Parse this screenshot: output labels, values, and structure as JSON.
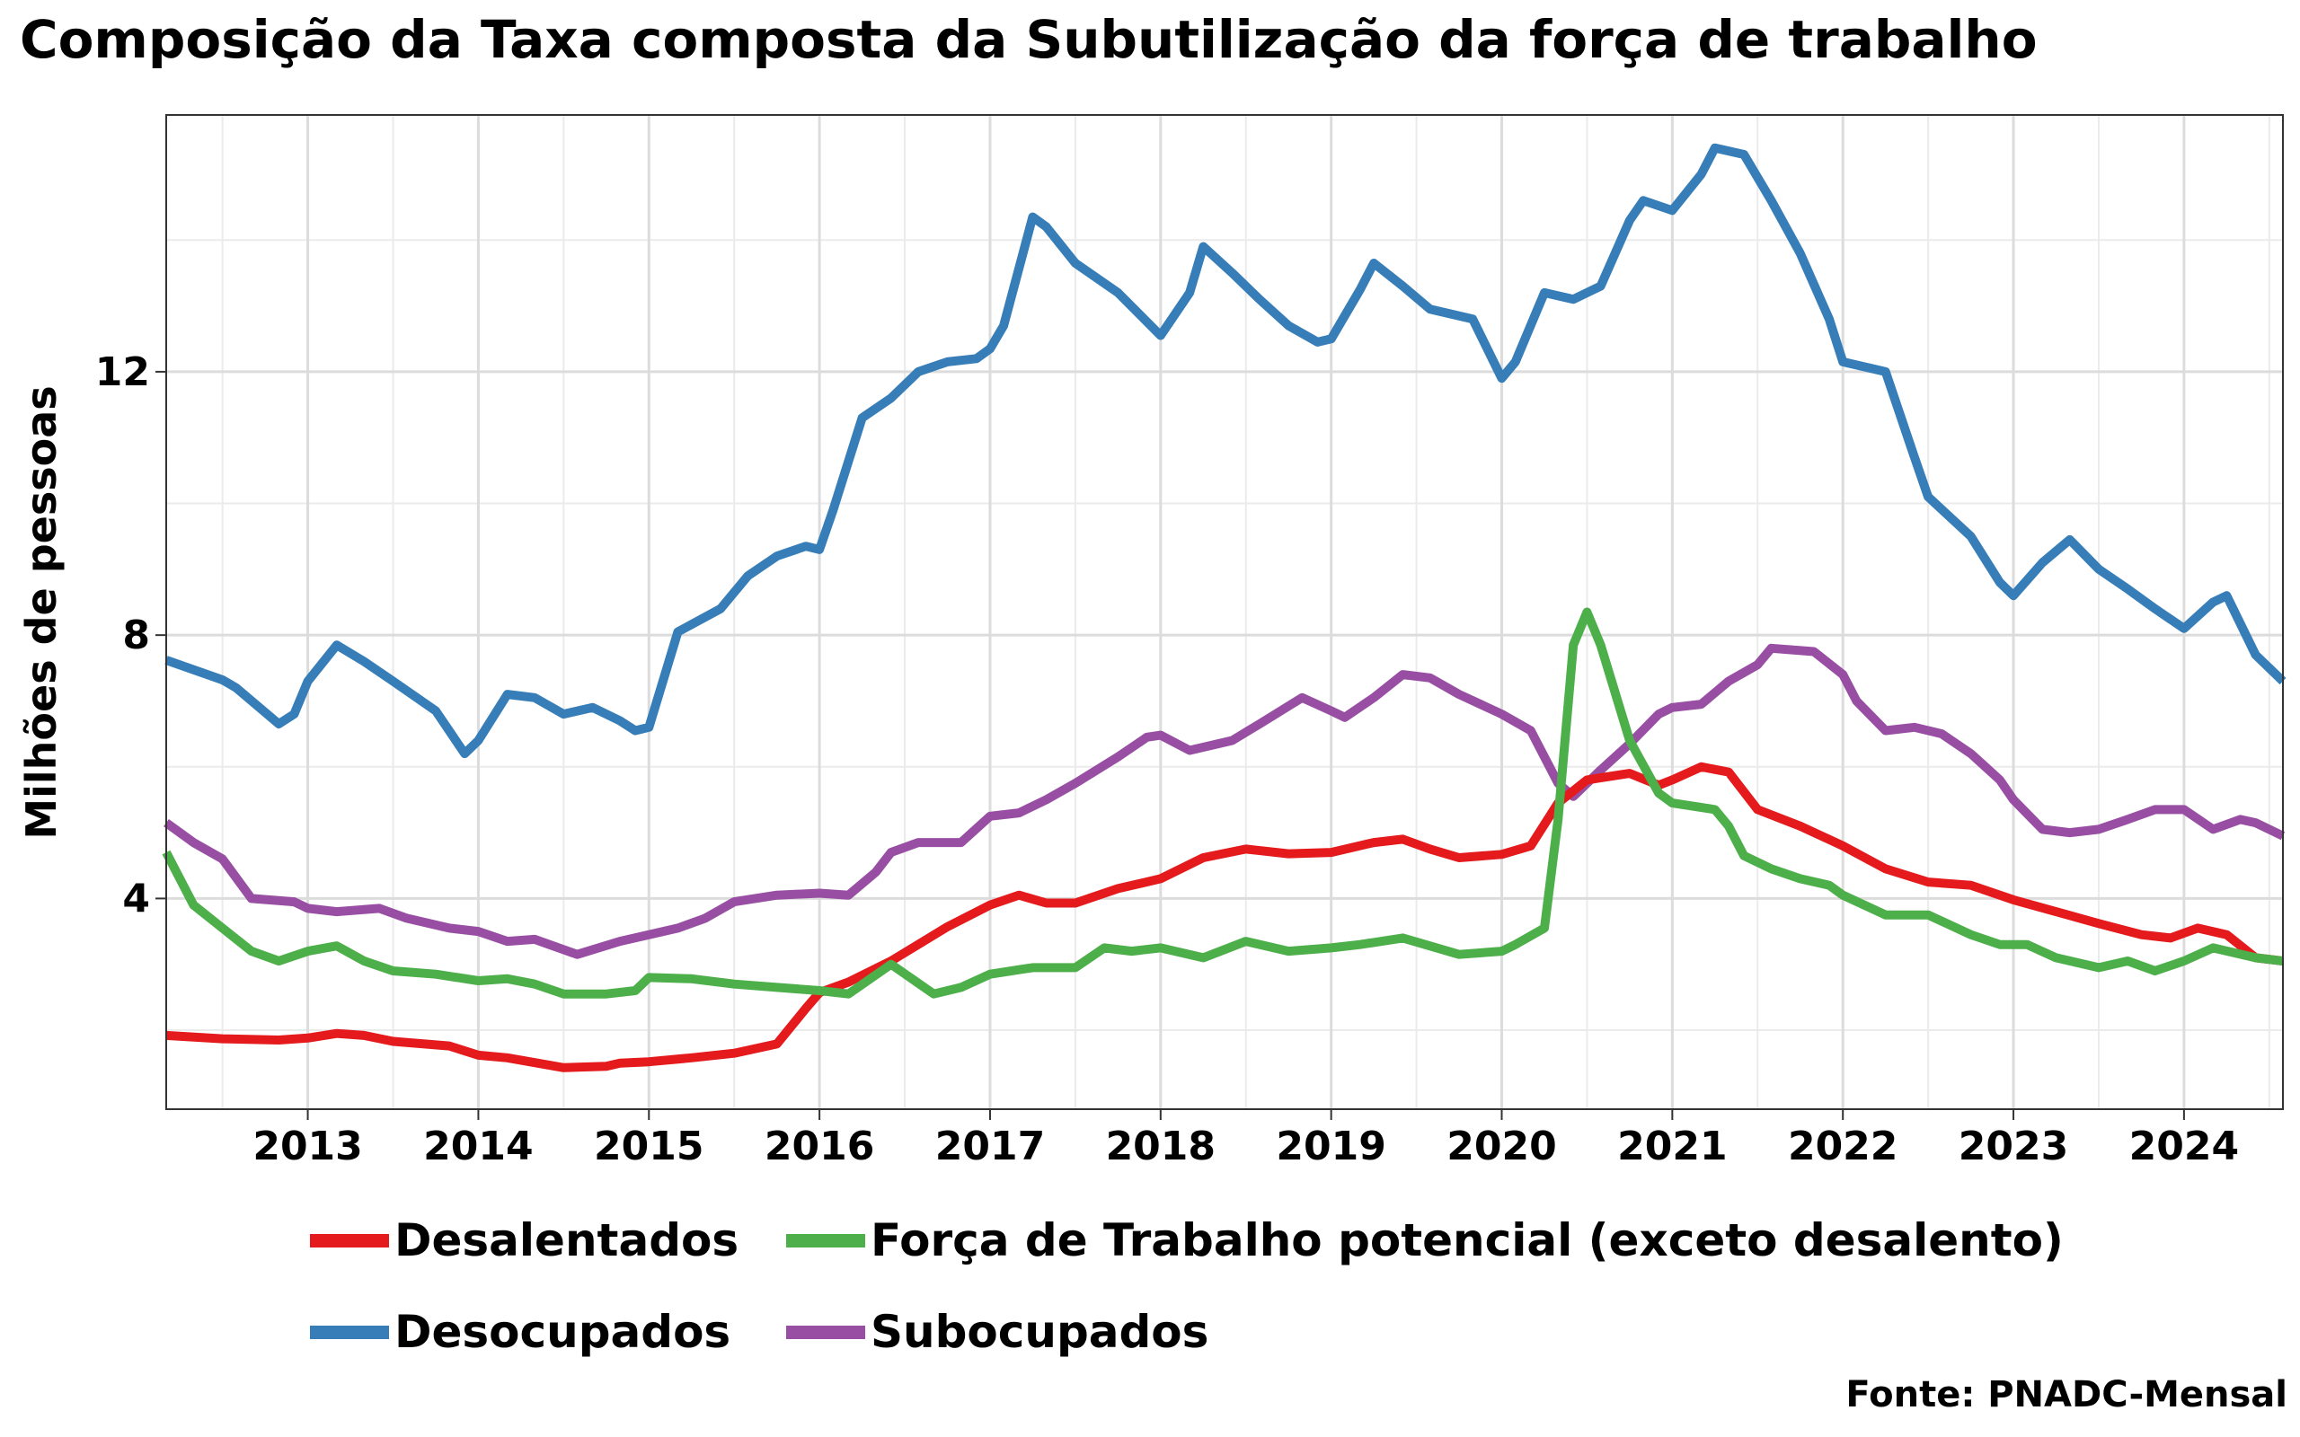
{
  "title": "Composição da Taxa composta da Subutilização da força de trabalho",
  "source": "Fonte: PNADC-Mensal",
  "chart_data": {
    "type": "line",
    "title": "Composição da Taxa composta da Subutilização da força de trabalho",
    "xlabel": "",
    "ylabel": "Milhões de pessoas",
    "xlim": [
      2012.17,
      2024.58
    ],
    "ylim": [
      0.8,
      15.9
    ],
    "x_ticks": [
      2013,
      2014,
      2015,
      2016,
      2017,
      2018,
      2019,
      2020,
      2021,
      2022,
      2023,
      2024
    ],
    "y_ticks": [
      4,
      8,
      12
    ],
    "grid": true,
    "legend_position": "bottom",
    "series": [
      {
        "name": "Desalentados",
        "color": "#E41A1C",
        "points": [
          [
            2012.17,
            1.92
          ],
          [
            2012.5,
            1.87
          ],
          [
            2012.83,
            1.85
          ],
          [
            2013.0,
            1.88
          ],
          [
            2013.17,
            1.95
          ],
          [
            2013.33,
            1.92
          ],
          [
            2013.5,
            1.83
          ],
          [
            2013.83,
            1.76
          ],
          [
            2014.0,
            1.62
          ],
          [
            2014.17,
            1.58
          ],
          [
            2014.5,
            1.43
          ],
          [
            2014.75,
            1.45
          ],
          [
            2014.83,
            1.5
          ],
          [
            2015.0,
            1.52
          ],
          [
            2015.25,
            1.58
          ],
          [
            2015.5,
            1.65
          ],
          [
            2015.75,
            1.79
          ],
          [
            2015.92,
            2.33
          ],
          [
            2016.0,
            2.57
          ],
          [
            2016.17,
            2.73
          ],
          [
            2016.42,
            3.05
          ],
          [
            2016.75,
            3.57
          ],
          [
            2017.0,
            3.9
          ],
          [
            2017.17,
            4.05
          ],
          [
            2017.33,
            3.93
          ],
          [
            2017.5,
            3.93
          ],
          [
            2017.75,
            4.15
          ],
          [
            2018.0,
            4.3
          ],
          [
            2018.25,
            4.62
          ],
          [
            2018.5,
            4.75
          ],
          [
            2018.75,
            4.68
          ],
          [
            2019.0,
            4.7
          ],
          [
            2019.25,
            4.85
          ],
          [
            2019.42,
            4.9
          ],
          [
            2019.58,
            4.75
          ],
          [
            2019.75,
            4.62
          ],
          [
            2020.0,
            4.67
          ],
          [
            2020.17,
            4.8
          ],
          [
            2020.33,
            5.45
          ],
          [
            2020.5,
            5.8
          ],
          [
            2020.75,
            5.9
          ],
          [
            2020.92,
            5.72
          ],
          [
            2021.0,
            5.8
          ],
          [
            2021.17,
            6.0
          ],
          [
            2021.33,
            5.92
          ],
          [
            2021.5,
            5.35
          ],
          [
            2021.75,
            5.1
          ],
          [
            2022.0,
            4.8
          ],
          [
            2022.25,
            4.45
          ],
          [
            2022.5,
            4.25
          ],
          [
            2022.75,
            4.2
          ],
          [
            2023.0,
            3.98
          ],
          [
            2023.25,
            3.8
          ],
          [
            2023.5,
            3.62
          ],
          [
            2023.75,
            3.45
          ],
          [
            2023.92,
            3.4
          ],
          [
            2024.08,
            3.55
          ],
          [
            2024.25,
            3.45
          ],
          [
            2024.42,
            3.1
          ],
          [
            2024.58,
            3.05
          ]
        ]
      },
      {
        "name": "Força de Trabalho potencial (exceto desalento)",
        "color": "#4DAF4A",
        "points": [
          [
            2012.17,
            4.7
          ],
          [
            2012.33,
            3.9
          ],
          [
            2012.5,
            3.55
          ],
          [
            2012.67,
            3.2
          ],
          [
            2012.83,
            3.05
          ],
          [
            2013.0,
            3.2
          ],
          [
            2013.17,
            3.28
          ],
          [
            2013.33,
            3.05
          ],
          [
            2013.5,
            2.9
          ],
          [
            2013.75,
            2.85
          ],
          [
            2014.0,
            2.75
          ],
          [
            2014.17,
            2.78
          ],
          [
            2014.33,
            2.7
          ],
          [
            2014.5,
            2.55
          ],
          [
            2014.75,
            2.55
          ],
          [
            2014.92,
            2.6
          ],
          [
            2015.0,
            2.8
          ],
          [
            2015.25,
            2.78
          ],
          [
            2015.5,
            2.7
          ],
          [
            2015.75,
            2.65
          ],
          [
            2016.0,
            2.6
          ],
          [
            2016.17,
            2.55
          ],
          [
            2016.42,
            3.0
          ],
          [
            2016.67,
            2.55
          ],
          [
            2016.83,
            2.65
          ],
          [
            2017.0,
            2.85
          ],
          [
            2017.25,
            2.95
          ],
          [
            2017.5,
            2.95
          ],
          [
            2017.67,
            3.25
          ],
          [
            2017.83,
            3.2
          ],
          [
            2018.0,
            3.25
          ],
          [
            2018.25,
            3.1
          ],
          [
            2018.5,
            3.35
          ],
          [
            2018.75,
            3.2
          ],
          [
            2019.0,
            3.25
          ],
          [
            2019.17,
            3.3
          ],
          [
            2019.42,
            3.4
          ],
          [
            2019.75,
            3.15
          ],
          [
            2020.0,
            3.2
          ],
          [
            2020.08,
            3.3
          ],
          [
            2020.25,
            3.55
          ],
          [
            2020.33,
            5.2
          ],
          [
            2020.42,
            7.85
          ],
          [
            2020.5,
            8.35
          ],
          [
            2020.58,
            7.85
          ],
          [
            2020.75,
            6.4
          ],
          [
            2020.92,
            5.6
          ],
          [
            2021.0,
            5.45
          ],
          [
            2021.25,
            5.35
          ],
          [
            2021.33,
            5.1
          ],
          [
            2021.42,
            4.65
          ],
          [
            2021.58,
            4.45
          ],
          [
            2021.75,
            4.3
          ],
          [
            2021.92,
            4.2
          ],
          [
            2022.0,
            4.05
          ],
          [
            2022.25,
            3.75
          ],
          [
            2022.5,
            3.75
          ],
          [
            2022.75,
            3.45
          ],
          [
            2022.92,
            3.3
          ],
          [
            2023.08,
            3.3
          ],
          [
            2023.25,
            3.1
          ],
          [
            2023.5,
            2.95
          ],
          [
            2023.67,
            3.05
          ],
          [
            2023.83,
            2.9
          ],
          [
            2024.0,
            3.05
          ],
          [
            2024.17,
            3.25
          ],
          [
            2024.42,
            3.1
          ],
          [
            2024.58,
            3.05
          ]
        ]
      },
      {
        "name": "Desocupados",
        "color": "#377EB8",
        "points": [
          [
            2012.17,
            7.62
          ],
          [
            2012.5,
            7.32
          ],
          [
            2012.58,
            7.2
          ],
          [
            2012.83,
            6.65
          ],
          [
            2012.92,
            6.8
          ],
          [
            2013.0,
            7.3
          ],
          [
            2013.17,
            7.85
          ],
          [
            2013.33,
            7.6
          ],
          [
            2013.5,
            7.3
          ],
          [
            2013.75,
            6.85
          ],
          [
            2013.92,
            6.2
          ],
          [
            2014.0,
            6.4
          ],
          [
            2014.17,
            7.1
          ],
          [
            2014.33,
            7.05
          ],
          [
            2014.5,
            6.8
          ],
          [
            2014.67,
            6.9
          ],
          [
            2014.83,
            6.7
          ],
          [
            2014.92,
            6.55
          ],
          [
            2015.0,
            6.6
          ],
          [
            2015.17,
            8.05
          ],
          [
            2015.42,
            8.4
          ],
          [
            2015.58,
            8.9
          ],
          [
            2015.75,
            9.2
          ],
          [
            2015.92,
            9.35
          ],
          [
            2016.0,
            9.3
          ],
          [
            2016.08,
            9.9
          ],
          [
            2016.25,
            11.3
          ],
          [
            2016.42,
            11.6
          ],
          [
            2016.58,
            12.0
          ],
          [
            2016.75,
            12.15
          ],
          [
            2016.92,
            12.2
          ],
          [
            2017.0,
            12.35
          ],
          [
            2017.08,
            12.7
          ],
          [
            2017.25,
            14.35
          ],
          [
            2017.33,
            14.2
          ],
          [
            2017.5,
            13.65
          ],
          [
            2017.75,
            13.2
          ],
          [
            2018.0,
            12.55
          ],
          [
            2018.17,
            13.2
          ],
          [
            2018.25,
            13.9
          ],
          [
            2018.42,
            13.5
          ],
          [
            2018.58,
            13.1
          ],
          [
            2018.75,
            12.7
          ],
          [
            2018.92,
            12.45
          ],
          [
            2019.0,
            12.5
          ],
          [
            2019.17,
            13.25
          ],
          [
            2019.25,
            13.65
          ],
          [
            2019.42,
            13.3
          ],
          [
            2019.58,
            12.95
          ],
          [
            2019.83,
            12.8
          ],
          [
            2020.0,
            11.9
          ],
          [
            2020.08,
            12.15
          ],
          [
            2020.25,
            13.2
          ],
          [
            2020.42,
            13.1
          ],
          [
            2020.58,
            13.3
          ],
          [
            2020.75,
            14.3
          ],
          [
            2020.83,
            14.6
          ],
          [
            2021.0,
            14.45
          ],
          [
            2021.17,
            15.0
          ],
          [
            2021.25,
            15.4
          ],
          [
            2021.42,
            15.3
          ],
          [
            2021.58,
            14.6
          ],
          [
            2021.75,
            13.8
          ],
          [
            2021.92,
            12.8
          ],
          [
            2022.0,
            12.15
          ],
          [
            2022.25,
            12.0
          ],
          [
            2022.42,
            10.7
          ],
          [
            2022.5,
            10.1
          ],
          [
            2022.75,
            9.5
          ],
          [
            2022.92,
            8.8
          ],
          [
            2023.0,
            8.6
          ],
          [
            2023.17,
            9.1
          ],
          [
            2023.33,
            9.45
          ],
          [
            2023.5,
            9.0
          ],
          [
            2023.67,
            8.7
          ],
          [
            2023.83,
            8.4
          ],
          [
            2024.0,
            8.1
          ],
          [
            2024.17,
            8.5
          ],
          [
            2024.25,
            8.6
          ],
          [
            2024.42,
            7.7
          ],
          [
            2024.58,
            7.3
          ]
        ]
      },
      {
        "name": "Subocupados",
        "color": "#984EA3",
        "points": [
          [
            2012.17,
            5.15
          ],
          [
            2012.33,
            4.85
          ],
          [
            2012.5,
            4.6
          ],
          [
            2012.67,
            4.0
          ],
          [
            2012.92,
            3.95
          ],
          [
            2013.0,
            3.85
          ],
          [
            2013.17,
            3.8
          ],
          [
            2013.42,
            3.85
          ],
          [
            2013.58,
            3.7
          ],
          [
            2013.83,
            3.55
          ],
          [
            2014.0,
            3.5
          ],
          [
            2014.17,
            3.35
          ],
          [
            2014.33,
            3.38
          ],
          [
            2014.58,
            3.15
          ],
          [
            2014.83,
            3.35
          ],
          [
            2015.0,
            3.45
          ],
          [
            2015.17,
            3.55
          ],
          [
            2015.33,
            3.7
          ],
          [
            2015.5,
            3.95
          ],
          [
            2015.75,
            4.05
          ],
          [
            2016.0,
            4.08
          ],
          [
            2016.17,
            4.05
          ],
          [
            2016.33,
            4.4
          ],
          [
            2016.42,
            4.7
          ],
          [
            2016.58,
            4.85
          ],
          [
            2016.83,
            4.85
          ],
          [
            2017.0,
            5.25
          ],
          [
            2017.17,
            5.3
          ],
          [
            2017.33,
            5.5
          ],
          [
            2017.5,
            5.75
          ],
          [
            2017.75,
            6.15
          ],
          [
            2017.92,
            6.45
          ],
          [
            2018.0,
            6.48
          ],
          [
            2018.17,
            6.25
          ],
          [
            2018.42,
            6.4
          ],
          [
            2018.58,
            6.65
          ],
          [
            2018.83,
            7.05
          ],
          [
            2019.0,
            6.85
          ],
          [
            2019.08,
            6.75
          ],
          [
            2019.25,
            7.05
          ],
          [
            2019.42,
            7.4
          ],
          [
            2019.58,
            7.35
          ],
          [
            2019.75,
            7.1
          ],
          [
            2020.0,
            6.8
          ],
          [
            2020.17,
            6.55
          ],
          [
            2020.33,
            5.75
          ],
          [
            2020.42,
            5.55
          ],
          [
            2020.58,
            5.95
          ],
          [
            2020.75,
            6.35
          ],
          [
            2020.92,
            6.8
          ],
          [
            2021.0,
            6.9
          ],
          [
            2021.17,
            6.95
          ],
          [
            2021.33,
            7.3
          ],
          [
            2021.5,
            7.55
          ],
          [
            2021.58,
            7.8
          ],
          [
            2021.83,
            7.75
          ],
          [
            2022.0,
            7.4
          ],
          [
            2022.08,
            7.0
          ],
          [
            2022.25,
            6.55
          ],
          [
            2022.42,
            6.6
          ],
          [
            2022.58,
            6.5
          ],
          [
            2022.75,
            6.2
          ],
          [
            2022.92,
            5.8
          ],
          [
            2023.0,
            5.5
          ],
          [
            2023.17,
            5.05
          ],
          [
            2023.33,
            5.0
          ],
          [
            2023.5,
            5.05
          ],
          [
            2023.67,
            5.2
          ],
          [
            2023.83,
            5.35
          ],
          [
            2024.0,
            5.35
          ],
          [
            2024.17,
            5.05
          ],
          [
            2024.33,
            5.2
          ],
          [
            2024.42,
            5.15
          ],
          [
            2024.58,
            4.95
          ]
        ]
      }
    ]
  }
}
